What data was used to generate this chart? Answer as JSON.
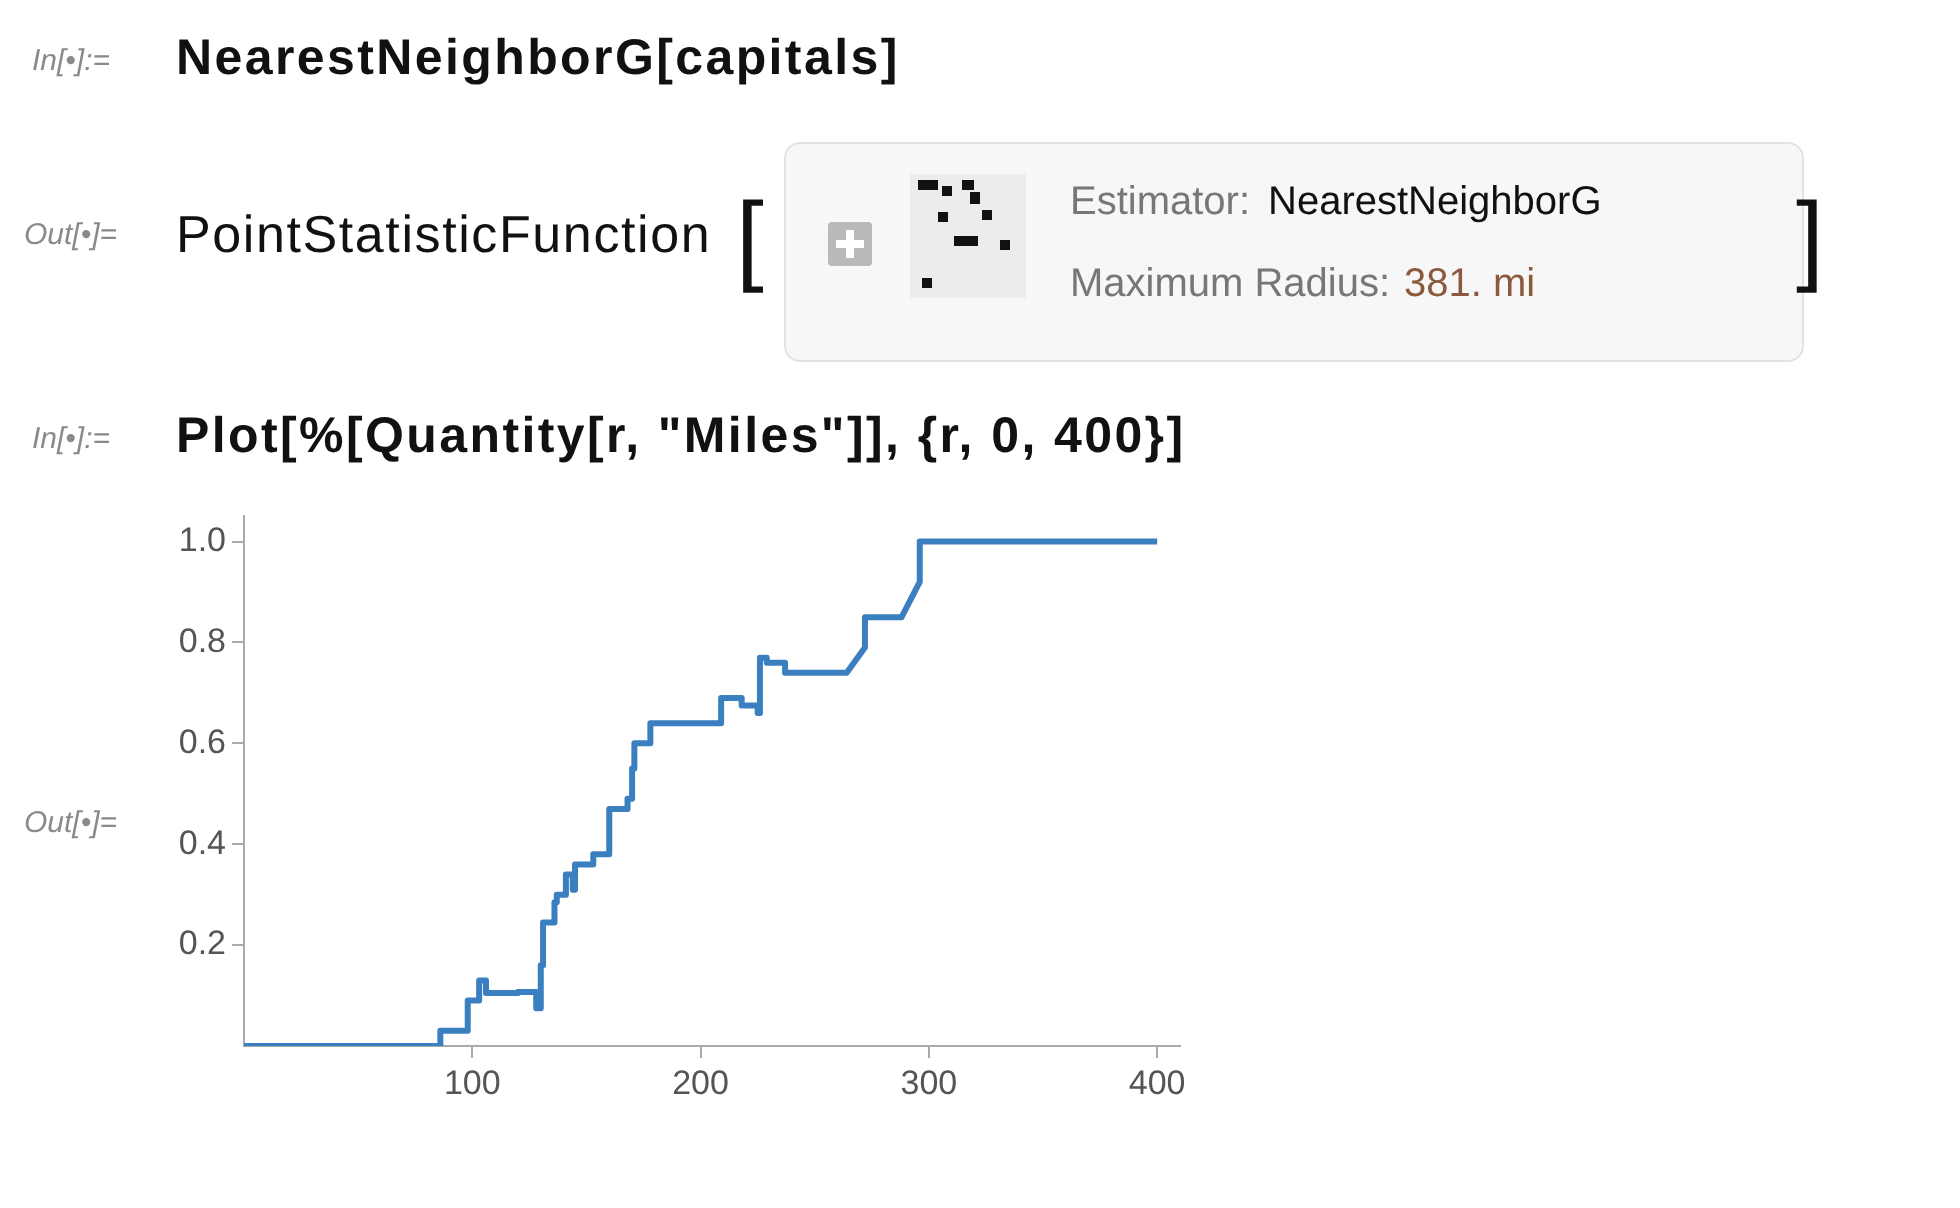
{
  "chart_data": {
    "type": "line",
    "annotations": [
      "In[•]:=",
      "NearestNeighborG[capitals]",
      "Out[•]=",
      "PointStatisticFunction",
      "[",
      "Estimator:",
      "NearestNeighborG",
      "Maximum Radius:",
      "381. mi",
      "]",
      "In[•]:=",
      "Plot[%[Quantity[r, \"Miles\"]], {r, 0, 400}]",
      "Out[•]="
    ],
    "series": [
      {
        "color": "#3a7fbf",
        "x": [
          0,
          86,
          86,
          98,
          98,
          103,
          103,
          106,
          106,
          120,
          120,
          128,
          128,
          130,
          130,
          131,
          131,
          136,
          136,
          137,
          137,
          138,
          138,
          141,
          141,
          144,
          144,
          145,
          145,
          153,
          153,
          160,
          160,
          168,
          168,
          170,
          170,
          171,
          171,
          178,
          178,
          209,
          209,
          218,
          218,
          225,
          225,
          226,
          226,
          229,
          229,
          237,
          237,
          264,
          272,
          272,
          288,
          296,
          296,
          400
        ],
        "values": [
          0,
          0,
          0.03,
          0.03,
          0.09,
          0.09,
          0.13,
          0.13,
          0.105,
          0.105,
          0.107,
          0.107,
          0.075,
          0.075,
          0.16,
          0.16,
          0.245,
          0.245,
          0.285,
          0.285,
          0.3,
          0.3,
          0.3,
          0.3,
          0.34,
          0.34,
          0.31,
          0.31,
          0.36,
          0.36,
          0.38,
          0.38,
          0.47,
          0.47,
          0.49,
          0.49,
          0.55,
          0.55,
          0.6,
          0.6,
          0.64,
          0.64,
          0.69,
          0.69,
          0.675,
          0.675,
          0.66,
          0.66,
          0.77,
          0.77,
          0.76,
          0.76,
          0.74,
          0.74,
          0.79,
          0.85,
          0.85,
          0.92,
          1,
          1
        ]
      }
    ],
    "xlim": [
      0,
      410
    ],
    "xticks": [
      100,
      200,
      300,
      400
    ],
    "ylim": [
      0,
      1.05
    ],
    "yticks": [
      0.2,
      0.4,
      0.6,
      0.8,
      {
        "value": 1,
        "label": "1.0"
      }
    ],
    "grid": false,
    "legend": false,
    "marker": "none",
    "line_style": "solid"
  }
}
